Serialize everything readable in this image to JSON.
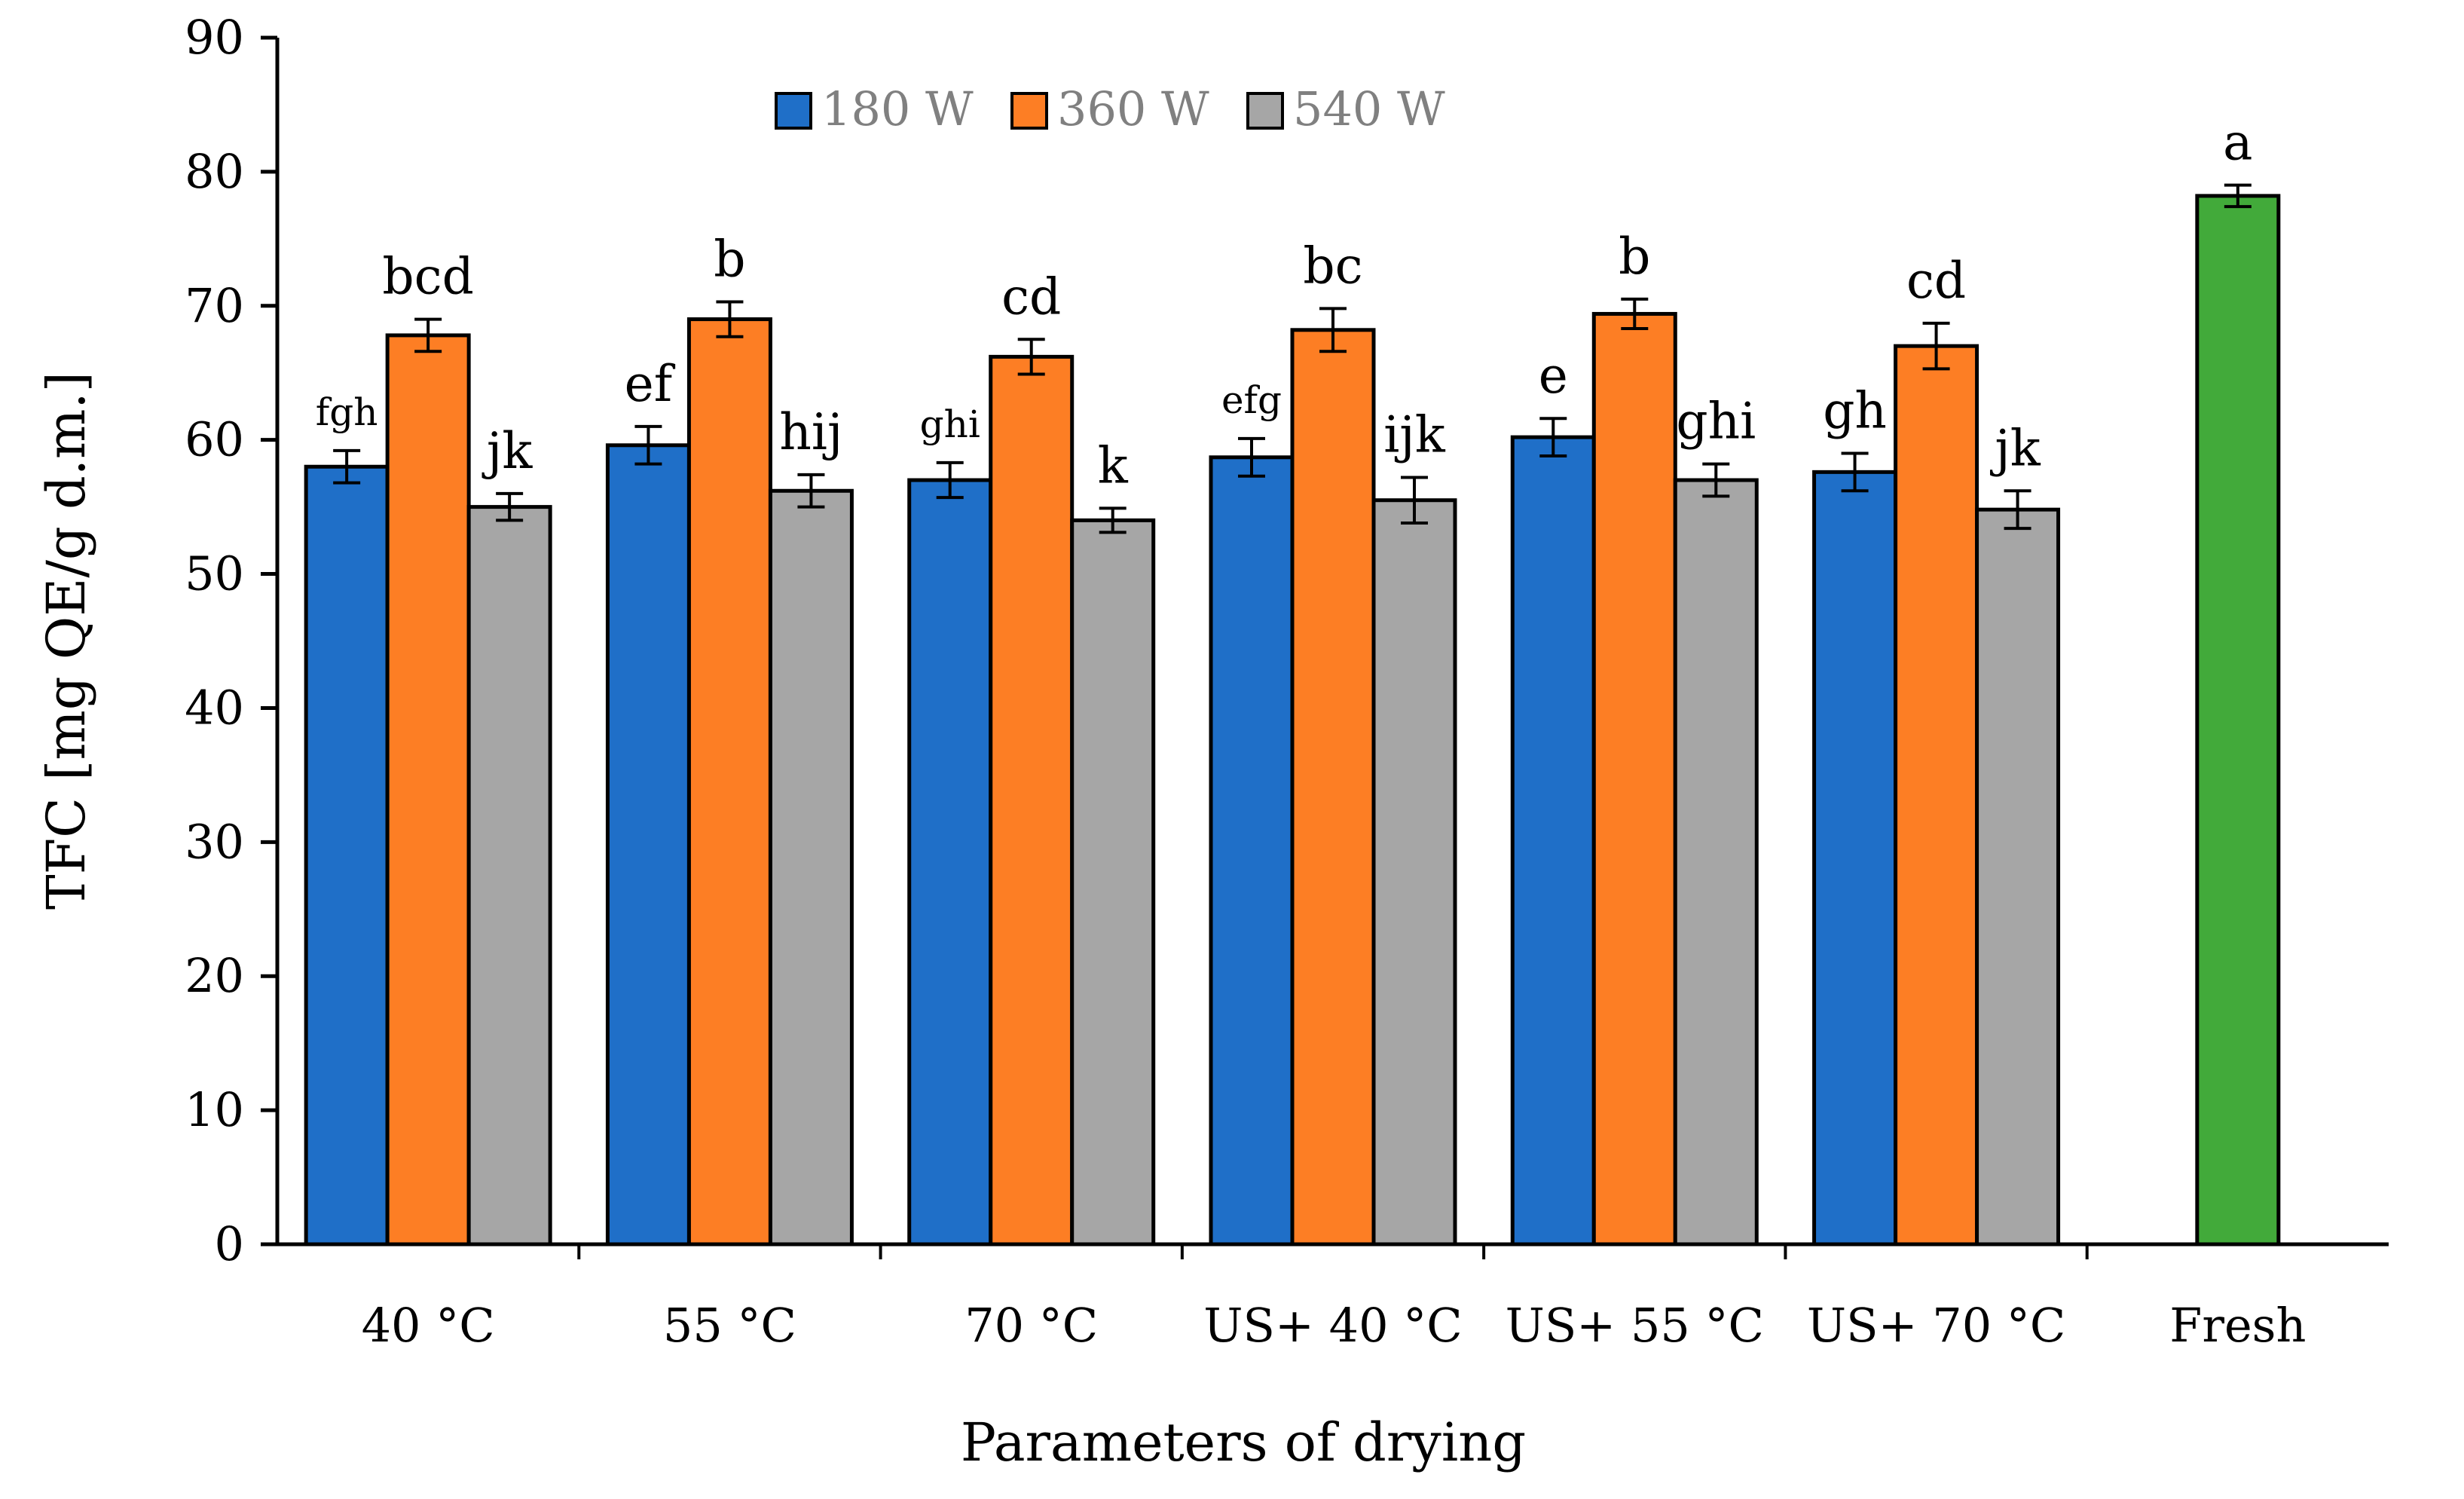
{
  "chart_data": {
    "type": "bar",
    "title": "",
    "xlabel": "Parameters of drying",
    "ylabel": "TFC [mg QE/g d.m.]",
    "ylim": [
      0,
      90
    ],
    "yticks": [
      "0",
      "10",
      "20",
      "30",
      "40",
      "50",
      "60",
      "70",
      "80",
      "90"
    ],
    "legend_position": "top-center",
    "categories": [
      "40 °C",
      "55 °C",
      "70 °C",
      "US+ 40 °C",
      "US+ 55 °C",
      "US+ 70 °C",
      "Fresh"
    ],
    "series": [
      {
        "name": "180 W",
        "color": "#1f6fc8",
        "values": [
          58.0,
          59.6,
          57.0,
          58.7,
          60.2,
          57.6,
          null
        ],
        "errors": [
          1.2,
          1.4,
          1.3,
          1.4,
          1.4,
          1.4,
          null
        ],
        "labels": [
          "fgh",
          "ef",
          "ghi",
          "efg",
          "e",
          "gh",
          null
        ]
      },
      {
        "name": "360 W",
        "color": "#fd7e24",
        "values": [
          67.8,
          69.0,
          66.2,
          68.2,
          69.4,
          67.0,
          null
        ],
        "errors": [
          1.2,
          1.3,
          1.3,
          1.6,
          1.1,
          1.7,
          null
        ],
        "labels": [
          "bcd",
          "b",
          "cd",
          "bc",
          "b",
          "cd",
          null
        ]
      },
      {
        "name": "540 W",
        "color": "#a6a6a6",
        "values": [
          55.0,
          56.2,
          54.0,
          55.5,
          57.0,
          54.8,
          null
        ],
        "errors": [
          1.0,
          1.2,
          0.9,
          1.7,
          1.2,
          1.4,
          null
        ],
        "labels": [
          "jk",
          "hij",
          "k",
          "ijk",
          "ghi",
          "jk",
          null
        ]
      },
      {
        "name": "Fresh",
        "color": "#42aa3a",
        "values": [
          null,
          null,
          null,
          null,
          null,
          null,
          78.2
        ],
        "errors": [
          null,
          null,
          null,
          null,
          null,
          null,
          0.8
        ],
        "labels": [
          null,
          null,
          null,
          null,
          null,
          null,
          "a"
        ]
      }
    ],
    "legend": [
      "180 W",
      "360 W",
      "540 W"
    ]
  }
}
